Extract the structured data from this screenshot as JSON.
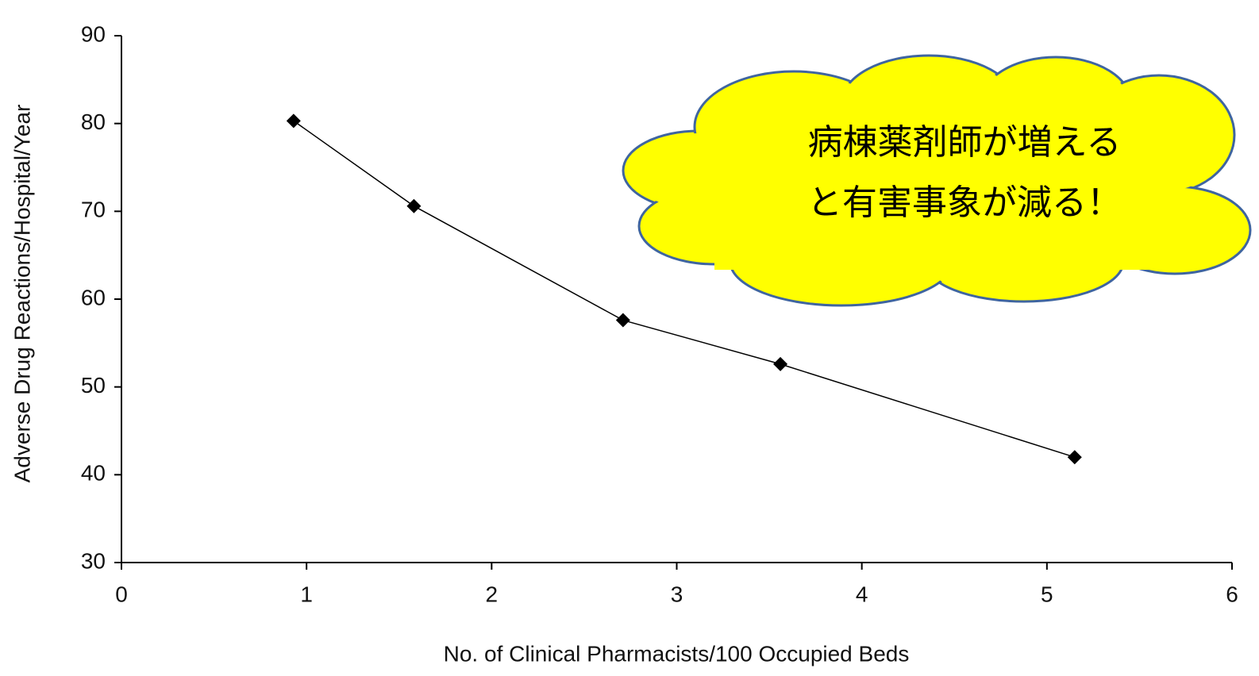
{
  "chart_data": {
    "type": "line",
    "x": [
      0.93,
      1.58,
      2.71,
      3.56,
      5.15
    ],
    "values": [
      80.3,
      70.6,
      57.6,
      52.6,
      42.0
    ],
    "color": "#000000",
    "xlabel": "No. of Clinical Pharmacists/100 Occupied Beds",
    "ylabel": "Adverse Drug Reactions/Hospital/Year",
    "xlim": [
      0,
      6
    ],
    "xticks": [
      0,
      1,
      2,
      3,
      4,
      5,
      6
    ],
    "ylim": [
      30,
      90
    ],
    "yticks": [
      30,
      40,
      50,
      60,
      70,
      80,
      90
    ],
    "grid": false,
    "annotation": [
      "病棟薬剤師が増える",
      "と有害事象が減る！"
    ]
  }
}
